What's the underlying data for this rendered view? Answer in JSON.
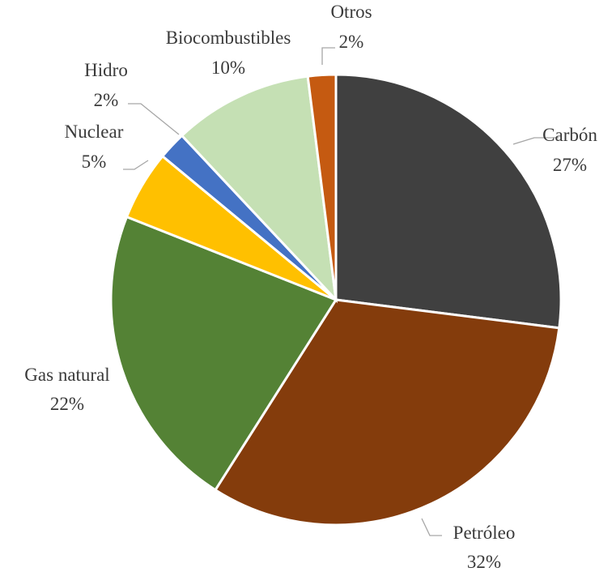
{
  "chart_data": {
    "type": "pie",
    "title": "",
    "start_angle_deg": 0,
    "direction": "clockwise",
    "slices": [
      {
        "label": "Carbón",
        "value": 27,
        "value_label": "27%",
        "color": "#404040"
      },
      {
        "label": "Petróleo",
        "value": 32,
        "value_label": "32%",
        "color": "#843c0c"
      },
      {
        "label": "Gas natural",
        "value": 22,
        "value_label": "22%",
        "color": "#548235"
      },
      {
        "label": "Nuclear",
        "value": 5,
        "value_label": "5%",
        "color": "#ffc000"
      },
      {
        "label": "Hidro",
        "value": 2,
        "value_label": "2%",
        "color": "#4472c4"
      },
      {
        "label": "Biocombustibles",
        "value": 10,
        "value_label": "10%",
        "color": "#c5e0b4"
      },
      {
        "label": "Otros",
        "value": 2,
        "value_label": "2%",
        "color": "#c55a11"
      }
    ]
  }
}
